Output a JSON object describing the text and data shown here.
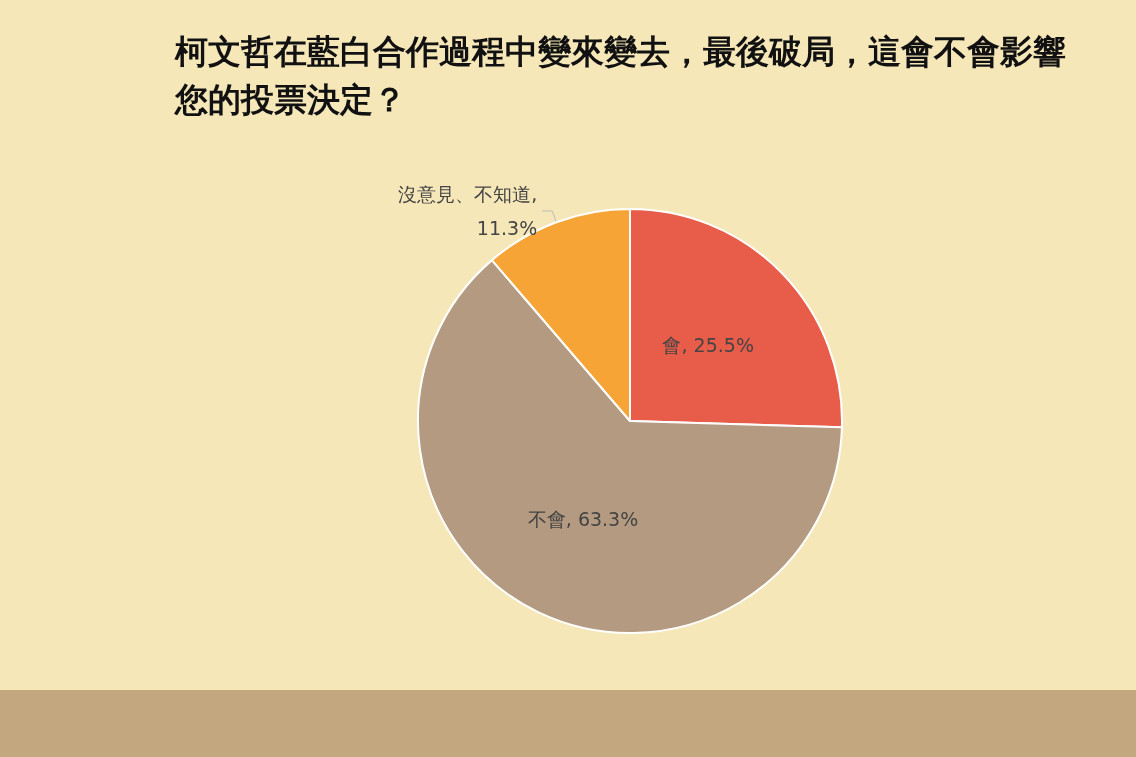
{
  "chart_data": {
    "type": "pie",
    "title": "柯文哲在藍白合作過程中變來變去，最後破局，這會不會影響您的投票決定？",
    "categories": [
      "會",
      "不會",
      "沒意見、不知道"
    ],
    "values": [
      25.5,
      63.3,
      11.3
    ],
    "colors": [
      "#e85d4a",
      "#b39a80",
      "#f7a436"
    ],
    "value_labels": [
      ", 25.5%",
      ", 63.3%",
      ",\n11.3%"
    ]
  }
}
